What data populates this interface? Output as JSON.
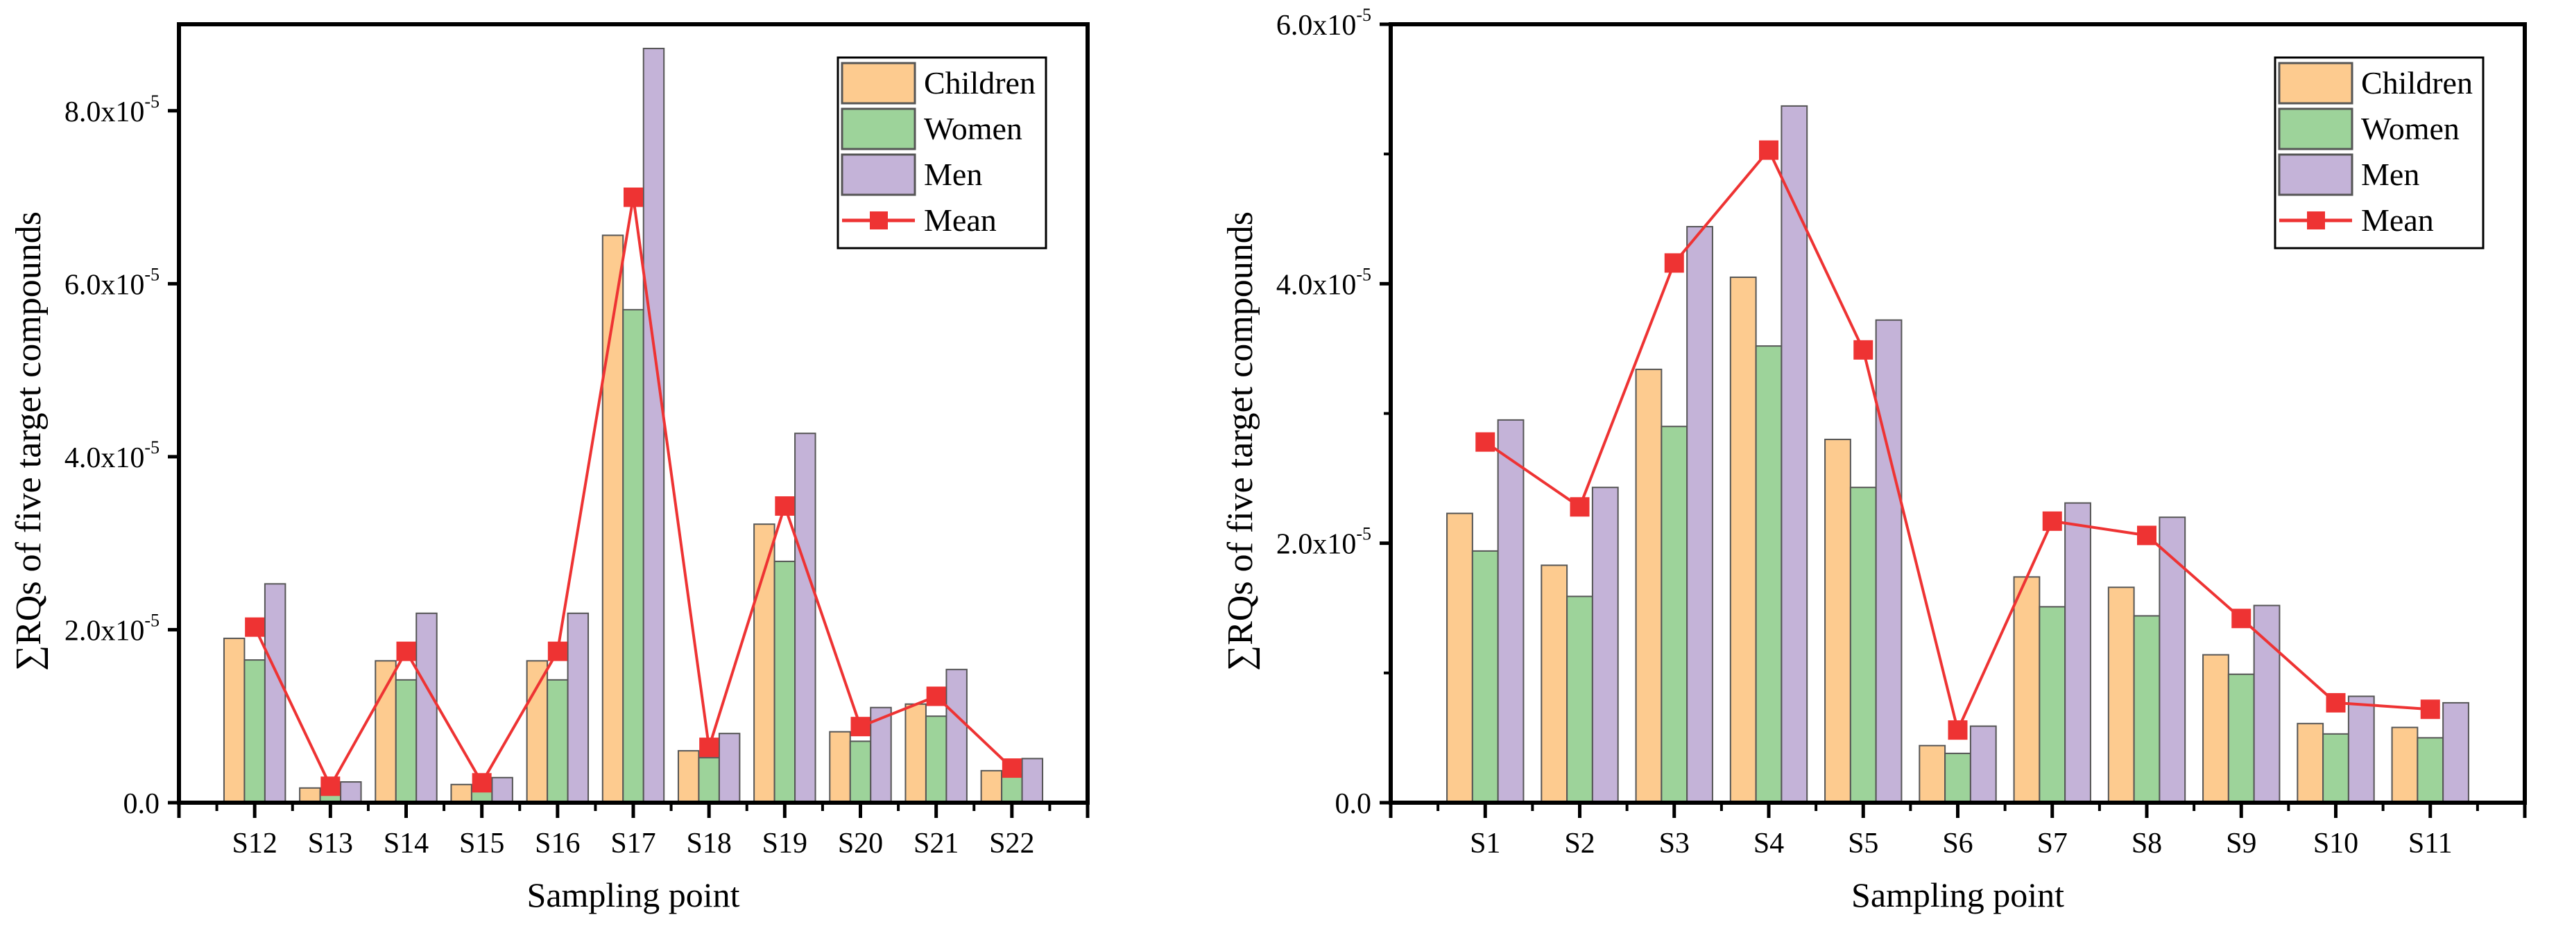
{
  "colors": {
    "children": "#fdcb8f",
    "women": "#9dd39a",
    "men": "#c4b3d8",
    "mean": "#ee3333",
    "bar_edge": "#555555"
  },
  "chart_data": [
    {
      "type": "bar",
      "title": "",
      "xlabel": "Sampling point",
      "ylabel": "∑RQs of five target compounds",
      "ylim": [
        0,
        9e-05
      ],
      "yticks": [
        {
          "value": 0,
          "label": "0.0",
          "exp": ""
        },
        {
          "value": 2e-05,
          "label": "2.0x10",
          "exp": "-5"
        },
        {
          "value": 4e-05,
          "label": "4.0x10",
          "exp": "-5"
        },
        {
          "value": 6e-05,
          "label": "6.0x10",
          "exp": "-5"
        },
        {
          "value": 8e-05,
          "label": "8.0x10",
          "exp": "-5"
        }
      ],
      "legend_position": "top-right",
      "categories": [
        "S12",
        "S13",
        "S14",
        "S15",
        "S16",
        "S17",
        "S18",
        "S19",
        "S20",
        "S21",
        "S22"
      ],
      "series": [
        {
          "name": "Children",
          "kind": "bar",
          "color_key": "children",
          "values": [
            1.9e-05,
            1.7e-06,
            1.64e-05,
            2.1e-06,
            1.64e-05,
            6.56e-05,
            6e-06,
            3.22e-05,
            8.2e-06,
            1.14e-05,
            3.7e-06
          ]
        },
        {
          "name": "Women",
          "kind": "bar",
          "color_key": "women",
          "values": [
            1.65e-05,
            1.3e-06,
            1.42e-05,
            1.7e-06,
            1.42e-05,
            5.7e-05,
            5.2e-06,
            2.79e-05,
            7.1e-06,
            1e-05,
            3.3e-06
          ]
        },
        {
          "name": "Men",
          "kind": "bar",
          "color_key": "men",
          "values": [
            2.53e-05,
            2.4e-06,
            2.19e-05,
            2.9e-06,
            2.19e-05,
            8.72e-05,
            8e-06,
            4.27e-05,
            1.1e-05,
            1.54e-05,
            5.1e-06
          ]
        },
        {
          "name": "Mean",
          "kind": "line",
          "color_key": "mean",
          "values": [
            2.03e-05,
            1.9e-06,
            1.75e-05,
            2.3e-06,
            1.75e-05,
            7e-05,
            6.4e-06,
            3.43e-05,
            8.8e-06,
            1.23e-05,
            4e-06
          ]
        }
      ]
    },
    {
      "type": "bar",
      "title": "",
      "xlabel": "Sampling point",
      "ylabel": "∑RQs of five target compounds",
      "ylim": [
        0,
        6e-05
      ],
      "yticks": [
        {
          "value": 0,
          "label": "0.0",
          "exp": ""
        },
        {
          "value": 2e-05,
          "label": "2.0x10",
          "exp": "-5"
        },
        {
          "value": 4e-05,
          "label": "4.0x10",
          "exp": "-5"
        },
        {
          "value": 6e-05,
          "label": "6.0x10",
          "exp": "-5"
        }
      ],
      "legend_position": "top-right",
      "categories": [
        "S1",
        "S2",
        "S3",
        "S4",
        "S5",
        "S6",
        "S7",
        "S8",
        "S9",
        "S10",
        "S11"
      ],
      "series": [
        {
          "name": "Children",
          "kind": "bar",
          "color_key": "children",
          "values": [
            2.23e-05,
            1.83e-05,
            3.34e-05,
            4.05e-05,
            2.8e-05,
            4.4e-06,
            1.74e-05,
            1.66e-05,
            1.14e-05,
            6.1e-06,
            5.8e-06
          ]
        },
        {
          "name": "Women",
          "kind": "bar",
          "color_key": "women",
          "values": [
            1.94e-05,
            1.59e-05,
            2.9e-05,
            3.52e-05,
            2.43e-05,
            3.8e-06,
            1.51e-05,
            1.44e-05,
            9.9e-06,
            5.3e-06,
            5e-06
          ]
        },
        {
          "name": "Men",
          "kind": "bar",
          "color_key": "men",
          "values": [
            2.95e-05,
            2.43e-05,
            4.44e-05,
            5.37e-05,
            3.72e-05,
            5.9e-06,
            2.31e-05,
            2.2e-05,
            1.52e-05,
            8.2e-06,
            7.7e-06
          ]
        },
        {
          "name": "Mean",
          "kind": "line",
          "color_key": "mean",
          "values": [
            2.78e-05,
            2.28e-05,
            4.16e-05,
            5.03e-05,
            3.49e-05,
            5.6e-06,
            2.17e-05,
            2.06e-05,
            1.42e-05,
            7.7e-06,
            7.2e-06
          ]
        }
      ]
    }
  ]
}
